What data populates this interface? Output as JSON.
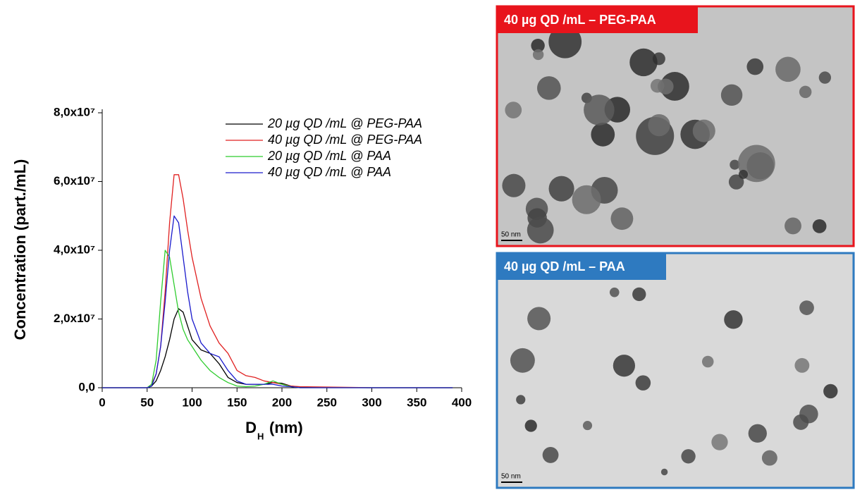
{
  "chart_data": {
    "type": "line",
    "ylabel": "Concentration (part./mL)",
    "xlabel": "D",
    "xlabel_sub": "H",
    "xlabel_unit": "(nm)",
    "x": [
      0,
      40,
      50,
      55,
      60,
      65,
      70,
      75,
      80,
      85,
      90,
      95,
      100,
      110,
      120,
      130,
      140,
      150,
      160,
      170,
      180,
      190,
      200,
      210,
      220,
      250,
      300,
      390
    ],
    "series": [
      {
        "name": "20 µg QD /mL @ PEG-PAA",
        "color": "#000000",
        "values": [
          0,
          0,
          0,
          500000,
          2000000,
          5000000,
          9000000,
          14000000,
          20000000,
          23000000,
          22000000,
          18000000,
          14000000,
          11000000,
          10000000,
          7000000,
          3000000,
          1500000,
          1000000,
          1000000,
          1000000,
          1500000,
          1300000,
          500000,
          200000,
          100000,
          0,
          0
        ]
      },
      {
        "name": "40 µg QD /mL @ PEG-PAA",
        "color": "#e02020",
        "values": [
          0,
          0,
          0,
          1000000,
          4000000,
          12000000,
          28000000,
          48000000,
          62000000,
          62000000,
          55000000,
          46000000,
          38000000,
          26000000,
          18000000,
          13000000,
          10000000,
          5000000,
          3500000,
          3000000,
          2000000,
          1500000,
          1000000,
          500000,
          300000,
          200000,
          0,
          0
        ]
      },
      {
        "name": "20 µg QD /mL @ PAA",
        "color": "#2ecc2e",
        "values": [
          0,
          0,
          0,
          1000000,
          8000000,
          25000000,
          40000000,
          38000000,
          30000000,
          22000000,
          17000000,
          14000000,
          12000000,
          8000000,
          5000000,
          3000000,
          1500000,
          500000,
          300000,
          500000,
          1000000,
          2000000,
          1000000,
          300000,
          0,
          0,
          0,
          0
        ]
      },
      {
        "name": "40 µg QD /mL @ PAA",
        "color": "#1a1acc",
        "values": [
          0,
          0,
          0,
          500000,
          4000000,
          12000000,
          25000000,
          40000000,
          50000000,
          48000000,
          38000000,
          28000000,
          20000000,
          13000000,
          10000000,
          9000000,
          5000000,
          2000000,
          1000000,
          1000000,
          1000000,
          1000000,
          500000,
          300000,
          0,
          0,
          0,
          0
        ]
      }
    ],
    "xlim": [
      0,
      400
    ],
    "xticks": [
      0,
      50,
      100,
      150,
      200,
      250,
      300,
      350,
      400
    ],
    "ylim": [
      0,
      80000000
    ],
    "yticks": [
      {
        "value": 0,
        "label": "0,0"
      },
      {
        "value": 20000000,
        "label": "2,0x10⁷"
      },
      {
        "value": 40000000,
        "label": "4,0x10⁷"
      },
      {
        "value": 60000000,
        "label": "6,0x10⁷"
      },
      {
        "value": 80000000,
        "label": "8,0x10⁷"
      }
    ],
    "grid": false,
    "legend": "upper right"
  },
  "images": [
    {
      "label": "40 µg QD /mL – PEG-PAA",
      "scale_bar": "50 nm",
      "color": "#e8141c"
    },
    {
      "label": "40 µg QD /mL – PAA",
      "scale_bar": "50 nm",
      "color": "#2e7ac0"
    }
  ]
}
